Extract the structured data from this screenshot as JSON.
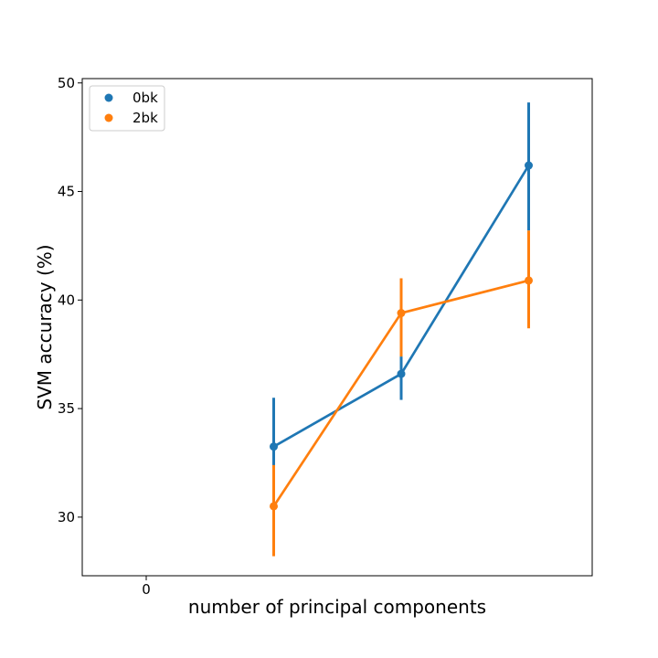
{
  "chart_data": {
    "type": "line",
    "xlabel": "number of principal components",
    "ylabel": "SVM accuracy (%)",
    "ylim": [
      27.3,
      50.2
    ],
    "y_ticks": [
      30,
      35,
      40,
      45,
      50
    ],
    "x_tick_labels": [
      "0"
    ],
    "legend_position": "top-left",
    "grid": false,
    "series": [
      {
        "name": "0bk",
        "color": "#1f77b4",
        "points": [
          {
            "x": 1,
            "y": 33.25,
            "err_low": 32.3,
            "err_high": 35.5
          },
          {
            "x": 2,
            "y": 36.6,
            "err_low": 35.4,
            "err_high": 37.4
          },
          {
            "x": 3,
            "y": 46.2,
            "err_low": 43.2,
            "err_high": 49.1
          }
        ]
      },
      {
        "name": "2bk",
        "color": "#ff7f0e",
        "points": [
          {
            "x": 1,
            "y": 30.5,
            "err_low": 28.2,
            "err_high": 32.4
          },
          {
            "x": 2,
            "y": 39.4,
            "err_low": 37.4,
            "err_high": 41.0
          },
          {
            "x": 3,
            "y": 40.9,
            "err_low": 38.7,
            "err_high": 43.2
          }
        ]
      }
    ]
  }
}
